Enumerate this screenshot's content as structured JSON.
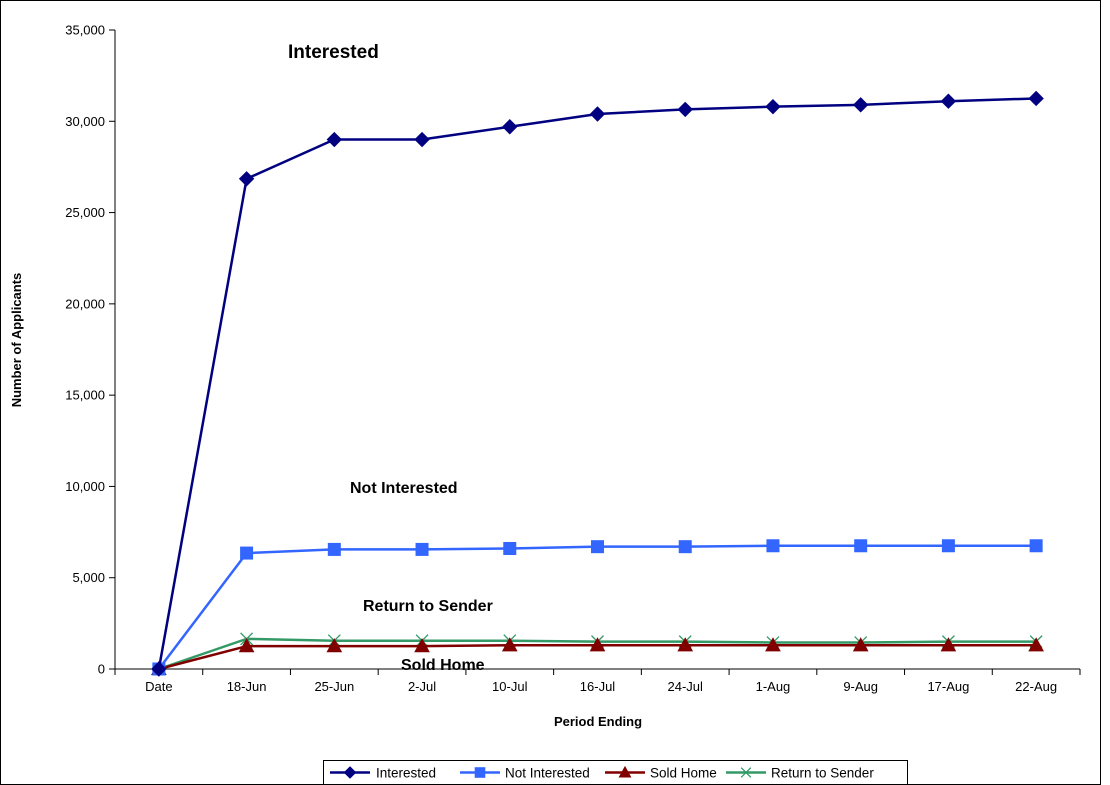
{
  "chart_data": {
    "type": "line",
    "x": [
      "Date",
      "18-Jun",
      "25-Jun",
      "2-Jul",
      "10-Jul",
      "16-Jul",
      "24-Jul",
      "1-Aug",
      "9-Aug",
      "17-Aug",
      "22-Aug"
    ],
    "xlabel": "Period Ending",
    "ylabel": "Number of Applicants",
    "ylim": [
      0,
      35000
    ],
    "yticks": [
      0,
      5000,
      10000,
      15000,
      20000,
      25000,
      30000,
      35000
    ],
    "ytick_labels": [
      "0",
      "5,000",
      "10,000",
      "15,000",
      "20,000",
      "25,000",
      "30,000",
      "35,000"
    ],
    "grid": false,
    "legend_position": "bottom",
    "series": [
      {
        "name": "Interested",
        "color": "#000080",
        "marker": "diamond",
        "values": [
          0,
          26850,
          29000,
          29000,
          29700,
          30400,
          30650,
          30800,
          30900,
          31100,
          31250
        ]
      },
      {
        "name": "Not Interested",
        "color": "#3366ff",
        "marker": "square",
        "values": [
          0,
          6350,
          6550,
          6550,
          6600,
          6700,
          6700,
          6750,
          6750,
          6750,
          6750
        ]
      },
      {
        "name": "Sold Home",
        "color": "#800000",
        "marker": "triangle",
        "values": [
          0,
          1250,
          1250,
          1250,
          1300,
          1300,
          1300,
          1300,
          1300,
          1300,
          1300
        ]
      },
      {
        "name": "Return to Sender",
        "color": "#339966",
        "marker": "x",
        "values": [
          0,
          1650,
          1550,
          1550,
          1550,
          1500,
          1500,
          1450,
          1450,
          1500,
          1500
        ]
      }
    ],
    "annotations": [
      "Interested",
      "Not Interested",
      "Return to Sender",
      "Sold Home"
    ]
  }
}
